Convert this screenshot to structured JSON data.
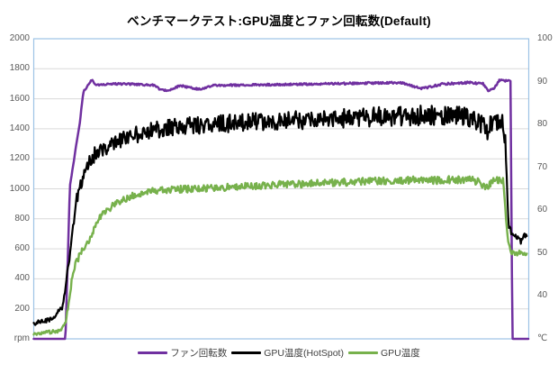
{
  "colors": {
    "background": "#FFFFFF",
    "plot_border": "#9DC3E6",
    "gridline": "#D9D9D9",
    "tick_text": "#595959",
    "legend_text": "#404040",
    "title_text": "#000000"
  },
  "chart_data": {
    "type": "line",
    "title": "ベンチマークテスト:GPU温度とファン回転数(Default)",
    "grid": "horizontal-only",
    "legend_position": "bottom",
    "x_axis": {
      "tick_labels_visible": false,
      "range": [
        0,
        100
      ],
      "description": "benchmark elapsed time (no labels shown)"
    },
    "left_axis": {
      "unit": "rpm",
      "min": 0,
      "max": 2000,
      "tick_step": 200,
      "tick_labels": [
        "2000",
        "1800",
        "1600",
        "1400",
        "1200",
        "1000",
        "800",
        "600",
        "400",
        "200",
        "rpm"
      ]
    },
    "right_axis": {
      "unit": "℃",
      "min": 30,
      "max": 100,
      "tick_step": 10,
      "tick_labels": [
        "100",
        "90",
        "80",
        "70",
        "60",
        "50",
        "40",
        "℃"
      ]
    },
    "series": [
      {
        "id": "fan-rpm",
        "name": "ファン回転数",
        "axis": "left",
        "color": "#7030A0",
        "width": 2.5,
        "summary": "Fan stopped at 0 rpm while idle, ramps to ~1700 rpm during benchmark, drops back to 0 rpm at end",
        "points": [
          [
            0,
            0
          ],
          [
            6.4,
            0
          ],
          [
            7.3,
            1020
          ],
          [
            9.3,
            1440
          ],
          [
            10,
            1645
          ],
          [
            10.9,
            1688
          ],
          [
            11.7,
            1728
          ],
          [
            12.6,
            1690
          ],
          [
            16,
            1700
          ],
          [
            20,
            1697
          ],
          [
            24.5,
            1690
          ],
          [
            25.5,
            1657
          ],
          [
            27.5,
            1655
          ],
          [
            29.5,
            1688
          ],
          [
            33.5,
            1663
          ],
          [
            36.5,
            1690
          ],
          [
            45,
            1692
          ],
          [
            55,
            1697
          ],
          [
            65,
            1703
          ],
          [
            74,
            1708
          ],
          [
            78.5,
            1668
          ],
          [
            82.5,
            1698
          ],
          [
            88,
            1708
          ],
          [
            90.8,
            1700
          ],
          [
            91.8,
            1650
          ],
          [
            92.8,
            1663
          ],
          [
            94,
            1722
          ],
          [
            96.3,
            1719
          ],
          [
            96.7,
            0
          ],
          [
            100,
            0
          ]
        ],
        "noise": [
          [
            0,
            0
          ],
          [
            6.3,
            0
          ],
          [
            7.5,
            4
          ],
          [
            12,
            6
          ],
          [
            94,
            7
          ],
          [
            96.5,
            5
          ],
          [
            96.8,
            0
          ],
          [
            100,
            0
          ]
        ]
      },
      {
        "id": "gpu-hotspot-temp",
        "name": "GPU温度(HotSpot)",
        "axis": "right",
        "color": "#000000",
        "width": 2.2,
        "summary": "HotSpot temp ~34℃ idle, rises to noisy ~79-82℃ plateau, falls to ~54℃ after load ends",
        "points": [
          [
            0,
            33.5
          ],
          [
            2,
            34.2
          ],
          [
            4,
            34.6
          ],
          [
            4.8,
            36
          ],
          [
            5.6,
            36.8
          ],
          [
            6.2,
            40
          ],
          [
            7,
            47
          ],
          [
            7.7,
            53
          ],
          [
            8.5,
            62
          ],
          [
            9.5,
            66
          ],
          [
            10.5,
            70
          ],
          [
            11.5,
            72
          ],
          [
            13,
            73.5
          ],
          [
            15,
            75
          ],
          [
            18,
            76.5
          ],
          [
            22,
            78
          ],
          [
            26,
            79
          ],
          [
            30,
            79.6
          ],
          [
            35,
            80
          ],
          [
            42,
            80.4
          ],
          [
            50,
            80.8
          ],
          [
            58,
            81.2
          ],
          [
            66,
            81.6
          ],
          [
            74,
            82
          ],
          [
            82,
            82.2
          ],
          [
            87,
            82
          ],
          [
            90,
            80.5
          ],
          [
            91.5,
            78.5
          ],
          [
            92.6,
            80.5
          ],
          [
            94.6,
            81
          ],
          [
            95.3,
            76
          ],
          [
            95.9,
            57
          ],
          [
            96.6,
            54.2
          ],
          [
            97.6,
            53.8
          ],
          [
            98.4,
            52.6
          ],
          [
            99,
            54.2
          ],
          [
            99.6,
            54
          ]
        ],
        "noise": [
          [
            0,
            0.5
          ],
          [
            5.5,
            0.7
          ],
          [
            9,
            1.4
          ],
          [
            13,
            2
          ],
          [
            60,
            2.2
          ],
          [
            90,
            2.4
          ],
          [
            94.8,
            2
          ],
          [
            95.8,
            1
          ],
          [
            96.6,
            0.5
          ],
          [
            100,
            0.45
          ]
        ]
      },
      {
        "id": "gpu-temp",
        "name": "GPU温度",
        "axis": "right",
        "color": "#77B14C",
        "width": 2.4,
        "summary": "GPU temp ~31℃ idle, climbs to ~65-67℃ plateau, falls to ~50℃ after load ends",
        "points": [
          [
            0,
            31
          ],
          [
            3,
            31.5
          ],
          [
            5.5,
            32
          ],
          [
            6.4,
            33.5
          ],
          [
            7,
            38
          ],
          [
            7.7,
            44
          ],
          [
            8.4,
            47.5
          ],
          [
            9.3,
            49.5
          ],
          [
            10.2,
            51
          ],
          [
            11.2,
            53
          ],
          [
            12.2,
            55.5
          ],
          [
            13.4,
            58.5
          ],
          [
            14.8,
            60
          ],
          [
            16.5,
            61.5
          ],
          [
            18.5,
            62.5
          ],
          [
            20.5,
            63.8
          ],
          [
            23,
            64.3
          ],
          [
            27,
            64.8
          ],
          [
            32,
            65
          ],
          [
            38,
            65.3
          ],
          [
            44,
            65.7
          ],
          [
            50,
            66
          ],
          [
            56,
            66.2
          ],
          [
            62,
            66.5
          ],
          [
            68,
            66.8
          ],
          [
            75,
            67
          ],
          [
            82,
            67
          ],
          [
            87,
            67.2
          ],
          [
            89.5,
            66.8
          ],
          [
            91.3,
            65.2
          ],
          [
            92.8,
            67
          ],
          [
            94.8,
            67
          ],
          [
            95.7,
            54
          ],
          [
            96.4,
            50.2
          ],
          [
            97.4,
            49.8
          ],
          [
            98.4,
            50.3
          ],
          [
            99,
            49.6
          ],
          [
            99.6,
            50
          ]
        ],
        "noise": [
          [
            0,
            0.35
          ],
          [
            6,
            0.5
          ],
          [
            10,
            0.9
          ],
          [
            15,
            0.8
          ],
          [
            60,
            0.85
          ],
          [
            90,
            0.9
          ],
          [
            94.8,
            0.7
          ],
          [
            96.4,
            0.5
          ],
          [
            100,
            0.4
          ]
        ]
      }
    ]
  }
}
